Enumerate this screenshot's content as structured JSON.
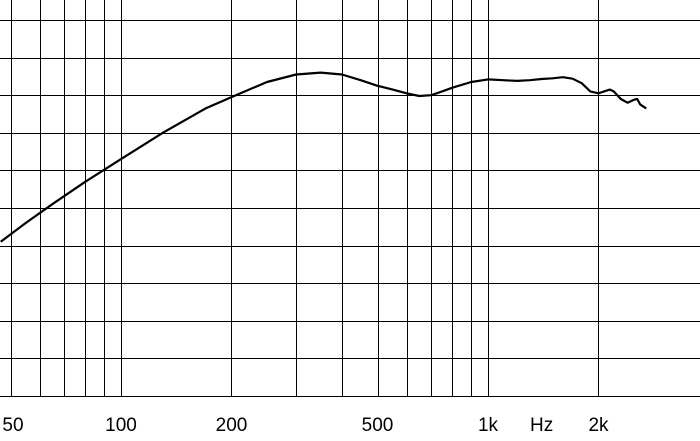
{
  "chart_data": {
    "type": "line",
    "title": "",
    "xlabel": "Hz",
    "ylabel": "",
    "x_scale": "log",
    "xlim": [
      47,
      2700
    ],
    "ylim": [
      0,
      10
    ],
    "grid": true,
    "x_grid_lines": [
      50,
      60,
      70,
      80,
      90,
      100,
      200,
      300,
      400,
      500,
      600,
      700,
      800,
      900,
      1000,
      2000
    ],
    "y_grid_lines": [
      1,
      2,
      3,
      4,
      5,
      6,
      7,
      8,
      9,
      10
    ],
    "x_tick_labels": [
      {
        "value": 50,
        "label": "50"
      },
      {
        "value": 100,
        "label": "100"
      },
      {
        "value": 200,
        "label": "200"
      },
      {
        "value": 500,
        "label": "500"
      },
      {
        "value": 1000,
        "label": "1k"
      },
      {
        "value": 2000,
        "label": "2k"
      }
    ],
    "unit_label": {
      "value": 1400,
      "label": "Hz"
    },
    "series": [
      {
        "color": "#000000",
        "points": [
          [
            47,
            4.1
          ],
          [
            55,
            4.6
          ],
          [
            65,
            5.1
          ],
          [
            80,
            5.7
          ],
          [
            100,
            6.3
          ],
          [
            130,
            7.0
          ],
          [
            170,
            7.65
          ],
          [
            200,
            7.95
          ],
          [
            250,
            8.35
          ],
          [
            300,
            8.55
          ],
          [
            350,
            8.6
          ],
          [
            400,
            8.55
          ],
          [
            450,
            8.4
          ],
          [
            500,
            8.25
          ],
          [
            550,
            8.15
          ],
          [
            600,
            8.05
          ],
          [
            650,
            7.98
          ],
          [
            700,
            8.0
          ],
          [
            750,
            8.1
          ],
          [
            800,
            8.2
          ],
          [
            900,
            8.35
          ],
          [
            1000,
            8.42
          ],
          [
            1100,
            8.4
          ],
          [
            1200,
            8.38
          ],
          [
            1300,
            8.4
          ],
          [
            1400,
            8.43
          ],
          [
            1500,
            8.45
          ],
          [
            1600,
            8.48
          ],
          [
            1700,
            8.44
          ],
          [
            1800,
            8.32
          ],
          [
            1900,
            8.1
          ],
          [
            2000,
            8.05
          ],
          [
            2100,
            8.12
          ],
          [
            2150,
            8.15
          ],
          [
            2200,
            8.1
          ],
          [
            2300,
            7.9
          ],
          [
            2400,
            7.8
          ],
          [
            2500,
            7.88
          ],
          [
            2550,
            7.9
          ],
          [
            2600,
            7.75
          ],
          [
            2700,
            7.65
          ]
        ]
      }
    ]
  }
}
